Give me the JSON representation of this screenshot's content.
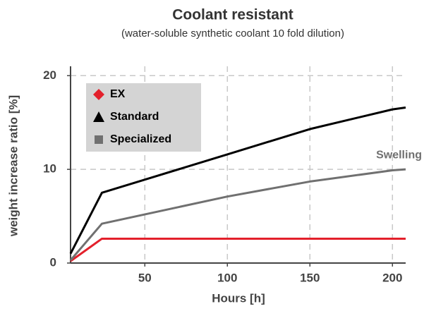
{
  "chart_data": {
    "type": "line",
    "title": "Coolant resistant",
    "subtitle": "(water-soluble synthetic coolant 10 fold dilution)",
    "xlabel": "Hours [h]",
    "ylabel": "weight increase ratio [%]",
    "annotation": "Swelling",
    "xlim": [
      5,
      208
    ],
    "ylim": [
      0,
      21
    ],
    "xticks": [
      50,
      100,
      150,
      200
    ],
    "yticks": [
      0,
      10,
      20
    ],
    "grid": true,
    "legend": "upper left",
    "series": [
      {
        "name": "EX",
        "color": "#e3202b",
        "marker": "diamond",
        "x": [
          5,
          24,
          208
        ],
        "values": [
          0.2,
          2.6,
          2.6
        ]
      },
      {
        "name": "Standard",
        "color": "#000000",
        "marker": "triangle",
        "x": [
          5,
          24,
          100,
          150,
          200,
          208
        ],
        "values": [
          1.0,
          7.5,
          11.6,
          14.3,
          16.4,
          16.6
        ]
      },
      {
        "name": "Specialized",
        "color": "#707070",
        "marker": "square",
        "x": [
          5,
          24,
          100,
          150,
          200,
          208
        ],
        "values": [
          0.3,
          4.2,
          7.1,
          8.7,
          9.9,
          10.0
        ]
      }
    ]
  }
}
